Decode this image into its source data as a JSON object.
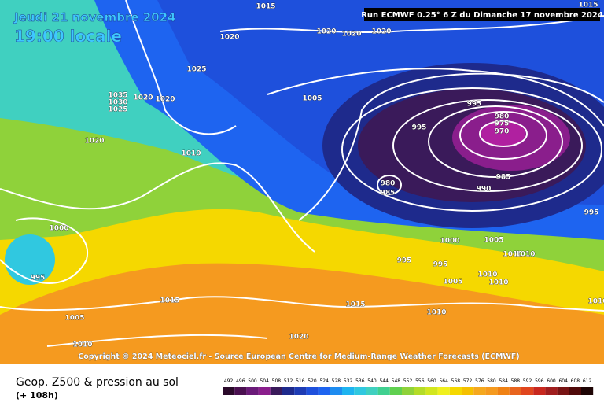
{
  "header": {
    "date": "Jeudi 21 novembre 2024",
    "time": "19:00 locale",
    "run": "Run ECMWF 0.25° 6 Z du Dimanche 17 novembre 2024"
  },
  "isobar_labels": [
    "1015",
    "1015",
    "1020",
    "1020",
    "1020",
    "1020",
    "1025",
    "1035",
    "1030",
    "1025",
    "1020",
    "1020",
    "1005",
    "995",
    "995",
    "980",
    "975",
    "970",
    "1020",
    "1010",
    "985",
    "990",
    "980",
    "985",
    "995",
    "1000",
    "1000",
    "1005",
    "1010",
    "1010",
    "995",
    "995",
    "1010",
    "1010",
    "1005",
    "995",
    "1015",
    "1015",
    "1010",
    "1005",
    "1020",
    "1010",
    "1010"
  ],
  "copyright": "Copyright © 2024 Meteociel.fr - Source European Centre for Medium-Range Weather Forecasts (ECMWF)",
  "footer": {
    "title": "Geop. Z500 & pression au sol",
    "lead": "(+ 108h)"
  },
  "legend": {
    "values": [
      492,
      496,
      500,
      504,
      508,
      512,
      516,
      520,
      524,
      528,
      532,
      536,
      540,
      544,
      548,
      552,
      556,
      560,
      564,
      568,
      572,
      576,
      580,
      584,
      588,
      592,
      596,
      600,
      604,
      608,
      612
    ],
    "colors": [
      "#2a0a2a",
      "#4a1050",
      "#6a1a78",
      "#8a1e8c",
      "#3a1a5a",
      "#1e2a8c",
      "#1e3cb4",
      "#1e50dc",
      "#1e64f0",
      "#1e8cf0",
      "#1eb4f0",
      "#30c8e0",
      "#40d0c0",
      "#40d090",
      "#60d050",
      "#8fd23a",
      "#b4dc28",
      "#d2e61e",
      "#f0f01e",
      "#f5d800",
      "#f5c000",
      "#f5a81e",
      "#f59a1f",
      "#f08214",
      "#e8641e",
      "#e0461e",
      "#c8281e",
      "#a01e1e",
      "#781414",
      "#500a0a",
      "#1e0505"
    ]
  }
}
